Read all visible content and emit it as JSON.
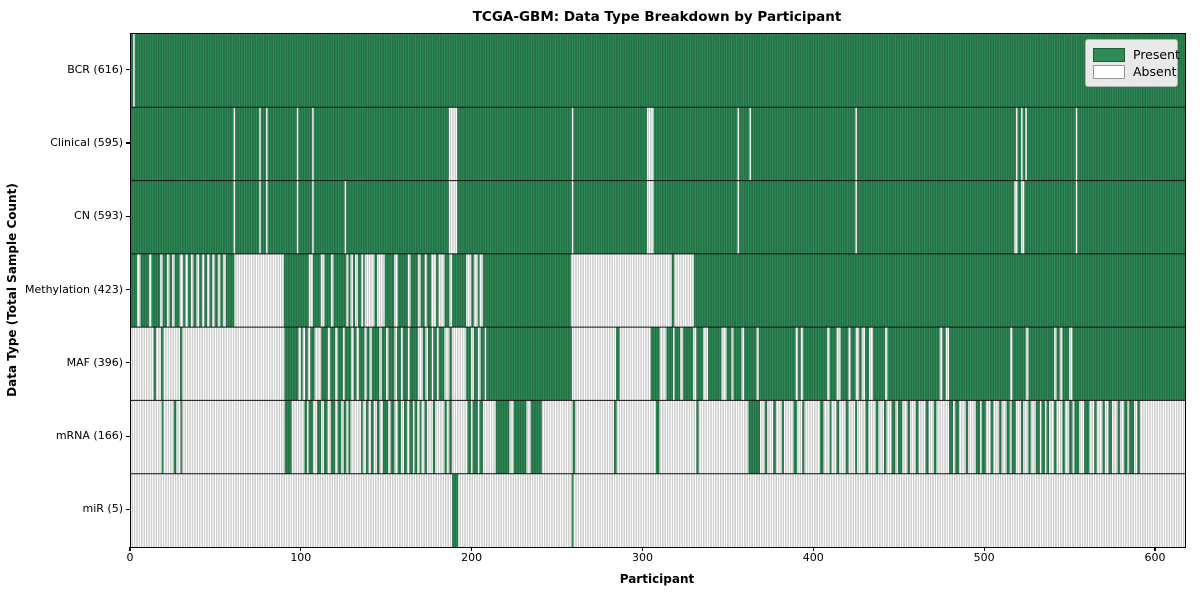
{
  "title": "TCGA-GBM: Data Type Breakdown by Participant",
  "colors": {
    "present": "#2e8b57",
    "present_edge": "#1e5c3a",
    "absent": "#ffffff",
    "absent_edge": "#999999",
    "bar_edge_overlay": "rgba(0,0,0,0.35)",
    "row_separator": "#111111",
    "legend_bg": "#e9e9e9"
  },
  "legend": {
    "entries": [
      {
        "label": "Present",
        "state": "present"
      },
      {
        "label": "Absent",
        "state": "absent"
      }
    ]
  },
  "chart_data": {
    "type": "heatmap",
    "title": "TCGA-GBM: Data Type Breakdown by Participant",
    "xlabel": "Participant",
    "ylabel": "Data Type (Total Sample Count)",
    "legend": [
      "Present",
      "Absent"
    ],
    "legend_position": "upper right",
    "x_range": [
      0,
      617
    ],
    "x_ticks": [
      0,
      100,
      200,
      300,
      400,
      500,
      600
    ],
    "grid": false,
    "rows": [
      {
        "name": "BCR",
        "label": "BCR (616)",
        "present_count": 616,
        "base": "present",
        "runs_state": "absent",
        "runs": [
          [
            1.3,
            2.3
          ]
        ]
      },
      {
        "name": "Clinical",
        "label": "Clinical (595)",
        "present_count": 595,
        "base": "present",
        "runs_state": "absent",
        "runs": [
          [
            60,
            61
          ],
          [
            75,
            76
          ],
          [
            79,
            80
          ],
          [
            97,
            98
          ],
          [
            106,
            107
          ],
          [
            186,
            191
          ],
          [
            258,
            259
          ],
          [
            302,
            306
          ],
          [
            355,
            356
          ],
          [
            362,
            363
          ],
          [
            424,
            425
          ],
          [
            518,
            519
          ],
          [
            521,
            522
          ],
          [
            523.5,
            524.5
          ],
          [
            553,
            554
          ]
        ]
      },
      {
        "name": "CN",
        "label": "CN (593)",
        "present_count": 593,
        "base": "present",
        "runs_state": "absent",
        "runs": [
          [
            60,
            61
          ],
          [
            75,
            76
          ],
          [
            79,
            80
          ],
          [
            97,
            98
          ],
          [
            106,
            107
          ],
          [
            125,
            126
          ],
          [
            186,
            191
          ],
          [
            258,
            259
          ],
          [
            302,
            306
          ],
          [
            355,
            356
          ],
          [
            424,
            425
          ],
          [
            517,
            519
          ],
          [
            521,
            523
          ],
          [
            553,
            554
          ]
        ]
      },
      {
        "name": "Methylation",
        "label": "Methylation (423)",
        "present_count": 423,
        "base": "present",
        "runs_state": "absent",
        "runs": [
          [
            3.5,
            5.5
          ],
          [
            10.5,
            12
          ],
          [
            17,
            18.5
          ],
          [
            21,
            22.5
          ],
          [
            24,
            25.5
          ],
          [
            28.5,
            30.5
          ],
          [
            31.8,
            33.4
          ],
          [
            35,
            36.5
          ],
          [
            38.3,
            40
          ],
          [
            41.5,
            43
          ],
          [
            44.5,
            46
          ],
          [
            47.5,
            49
          ],
          [
            50.8,
            52.3
          ],
          [
            53.8,
            55.5
          ],
          [
            60.5,
            89.5
          ],
          [
            104,
            106.5
          ],
          [
            111,
            113.3
          ],
          [
            117,
            118.5
          ],
          [
            126,
            127.3
          ],
          [
            128.5,
            130
          ],
          [
            131.2,
            132.8
          ],
          [
            134.7,
            136
          ],
          [
            136.8,
            142.5
          ],
          [
            144,
            148.5
          ],
          [
            154,
            156.2
          ],
          [
            162,
            163.6
          ],
          [
            167.9,
            169.5
          ],
          [
            171.8,
            173.3
          ],
          [
            175.7,
            178.6
          ],
          [
            180,
            183.5
          ],
          [
            186.4,
            188
          ],
          [
            196.2,
            199.2
          ],
          [
            200.7,
            203
          ],
          [
            204,
            206
          ],
          [
            257.5,
            316.5
          ],
          [
            318,
            329.5
          ]
        ]
      },
      {
        "name": "MAF",
        "label": "MAF (396)",
        "present_count": 396,
        "base": "present",
        "runs_state": "absent",
        "runs": [
          [
            0,
            13.3
          ],
          [
            14.6,
            17.6
          ],
          [
            19,
            28.7
          ],
          [
            30,
            89.8
          ],
          [
            98,
            99.5
          ],
          [
            100.5,
            102
          ],
          [
            103.5,
            105
          ],
          [
            107.5,
            111.3
          ],
          [
            115.2,
            116.6
          ],
          [
            119.5,
            121
          ],
          [
            124,
            125.2
          ],
          [
            128.8,
            130.4
          ],
          [
            132,
            133.5
          ],
          [
            136.6,
            138
          ],
          [
            139.6,
            141
          ],
          [
            145.4,
            146.8
          ],
          [
            149.3,
            150.7
          ],
          [
            154.2,
            155.8
          ],
          [
            158,
            159.2
          ],
          [
            162,
            163.2
          ],
          [
            167.9,
            170.8
          ],
          [
            172.4,
            173.8
          ],
          [
            176,
            177
          ],
          [
            179,
            180.2
          ],
          [
            183.5,
            186.4
          ],
          [
            187.8,
            196.2
          ],
          [
            199,
            200.7
          ],
          [
            203,
            204.6
          ],
          [
            207,
            208
          ],
          [
            258,
            284
          ],
          [
            286,
            304.3
          ],
          [
            309.5,
            313.4
          ],
          [
            317.3,
            318.3
          ],
          [
            321.5,
            323.2
          ],
          [
            329,
            331
          ],
          [
            334.9,
            337.8
          ],
          [
            345.6,
            348.6
          ],
          [
            351.5,
            352.7
          ],
          [
            357.4,
            359
          ],
          [
            366.2,
            367.5
          ],
          [
            389,
            390.5
          ],
          [
            392,
            393.5
          ],
          [
            407.5,
            409
          ],
          [
            413,
            415.4
          ],
          [
            419.9,
            421.3
          ],
          [
            424.2,
            426.2
          ],
          [
            427.7,
            429.7
          ],
          [
            432,
            434.4
          ],
          [
            441.4,
            442.8
          ],
          [
            473.4,
            475
          ],
          [
            476.9,
            478.9
          ],
          [
            514.6,
            516
          ],
          [
            523.8,
            525.4
          ],
          [
            540.4,
            541.8
          ],
          [
            543.7,
            545.3
          ],
          [
            549.2,
            551.2
          ]
        ]
      },
      {
        "name": "mRNA",
        "label": "mRNA (166)",
        "present_count": 166,
        "base": "absent",
        "runs_state": "present",
        "runs": [
          [
            18,
            19
          ],
          [
            25,
            26.5
          ],
          [
            29,
            30
          ],
          [
            90,
            94
          ],
          [
            101.5,
            103
          ],
          [
            104,
            106.5
          ],
          [
            109,
            111.3
          ],
          [
            113,
            115
          ],
          [
            117,
            119.5
          ],
          [
            121,
            123
          ],
          [
            124.5,
            126
          ],
          [
            127.3,
            128.5
          ],
          [
            134.7,
            135.7
          ],
          [
            137.6,
            139
          ],
          [
            140.5,
            142
          ],
          [
            144,
            145.5
          ],
          [
            147.5,
            150.5
          ],
          [
            152,
            154.2
          ],
          [
            156.2,
            158
          ],
          [
            159.8,
            161.5
          ],
          [
            163,
            165
          ],
          [
            166,
            167.5
          ],
          [
            169,
            170
          ],
          [
            171.8,
            173.2
          ],
          [
            176.7,
            178
          ],
          [
            183.5,
            184.8
          ],
          [
            186.3,
            187.8
          ],
          [
            197,
            199
          ],
          [
            200,
            203
          ],
          [
            204,
            206
          ],
          [
            213.5,
            221.5
          ],
          [
            224,
            231.5
          ],
          [
            234,
            240.5
          ],
          [
            258.5,
            260
          ],
          [
            282.7,
            284.3
          ],
          [
            307.3,
            309.3
          ],
          [
            331,
            332.3
          ],
          [
            361.4,
            368.2
          ],
          [
            371,
            372.4
          ],
          [
            376,
            377.5
          ],
          [
            381,
            382.2
          ],
          [
            387.8,
            389.8
          ],
          [
            393,
            394.2
          ],
          [
            403.4,
            405.4
          ],
          [
            409,
            410
          ],
          [
            413,
            414.5
          ],
          [
            418.4,
            420
          ],
          [
            424,
            425
          ],
          [
            430,
            431.6
          ],
          [
            436,
            437.5
          ],
          [
            440.8,
            442.2
          ],
          [
            445.3,
            447.5
          ],
          [
            449,
            451.5
          ],
          [
            454.5,
            456
          ],
          [
            459.4,
            461
          ],
          [
            465.2,
            466.8
          ],
          [
            470,
            471.5
          ],
          [
            478.9,
            481.2
          ],
          [
            482.5,
            484.7
          ],
          [
            488.6,
            490
          ],
          [
            494.5,
            497
          ],
          [
            498,
            500.4
          ],
          [
            503.3,
            504.7
          ],
          [
            508.2,
            509.6
          ],
          [
            512.5,
            514.4
          ],
          [
            515.5,
            517.9
          ],
          [
            521,
            522.3
          ],
          [
            525.3,
            526.7
          ],
          [
            529.6,
            532
          ],
          [
            533,
            535
          ],
          [
            536,
            537.4
          ],
          [
            540.3,
            541.7
          ],
          [
            545.3,
            546.7
          ],
          [
            549.2,
            551.1
          ],
          [
            552.3,
            555
          ],
          [
            558,
            561
          ],
          [
            563.9,
            565.3
          ],
          [
            568.7,
            570
          ],
          [
            572.3,
            574.2
          ],
          [
            577.5,
            578.9
          ],
          [
            581.4,
            583.3
          ],
          [
            584.3,
            587.2
          ],
          [
            589.2,
            590.6
          ]
        ]
      },
      {
        "name": "miR",
        "label": "miR (5)",
        "present_count": 5,
        "base": "absent",
        "runs_state": "present",
        "runs": [
          [
            188,
            191.5
          ],
          [
            258,
            259
          ]
        ]
      }
    ]
  }
}
